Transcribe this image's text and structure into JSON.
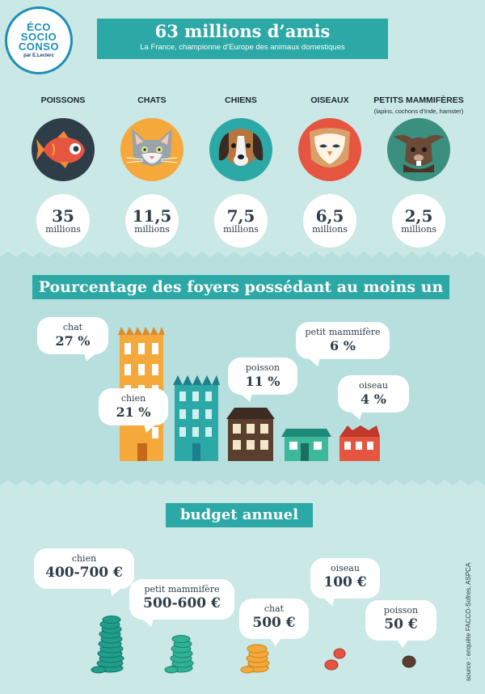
{
  "logo": {
    "lines": [
      "ÉCO",
      "SOCIO",
      "CONSO"
    ],
    "by": "par E.Leclerc"
  },
  "header": {
    "title": "63 millions d’amis",
    "subtitle": "La France, championne d’Europe des animaux domestiques"
  },
  "animals": [
    {
      "label": "POISSONS",
      "sub": "",
      "number": "35",
      "unit": "millions",
      "icon": "fish-icon",
      "color": "#2f3d48"
    },
    {
      "label": "CHATS",
      "sub": "",
      "number": "11,5",
      "unit": "millions",
      "icon": "cat-icon",
      "color": "#f4a93a"
    },
    {
      "label": "CHIENS",
      "sub": "",
      "number": "7,5",
      "unit": "millions",
      "icon": "dog-icon",
      "color": "#2ca8a6"
    },
    {
      "label": "OISEAUX",
      "sub": "",
      "number": "6,5",
      "unit": "millions",
      "icon": "owl-icon",
      "color": "#e5553f"
    },
    {
      "label": "PETITS MAMMIFÈRES",
      "sub": "(lapins, cochons d’Inde, hamster)",
      "number": "2,5",
      "unit": "millions",
      "icon": "rabbit-icon",
      "color": "#e8e2d0"
    }
  ],
  "households": {
    "title": "Pourcentage des foyers possédant au moins un",
    "items": [
      {
        "label": "chat",
        "value": "27 %",
        "percent": 27
      },
      {
        "label": "chien",
        "value": "21 %",
        "percent": 21
      },
      {
        "label": "poisson",
        "value": "11 %",
        "percent": 11
      },
      {
        "label": "petit mammifère",
        "value": "6 %",
        "percent": 6
      },
      {
        "label": "oiseau",
        "value": "4 %",
        "percent": 4
      }
    ]
  },
  "budget": {
    "title": "budget annuel",
    "items": [
      {
        "label": "chien",
        "value": "400-700 €"
      },
      {
        "label": "petit mammifère",
        "value": "500-600 €"
      },
      {
        "label": "chat",
        "value": "500 €"
      },
      {
        "label": "oiseau",
        "value": "100 €"
      },
      {
        "label": "poisson",
        "value": "50 €"
      }
    ]
  },
  "source": "source : enquête FACCO-Sofres, ASPCA",
  "colors": {
    "accent": "#2ca8a6",
    "background": "#c9e8e6",
    "orange": "#f4a93a",
    "red": "#e5553f",
    "brown": "#5b3f2e",
    "text": "#2f3d48"
  }
}
